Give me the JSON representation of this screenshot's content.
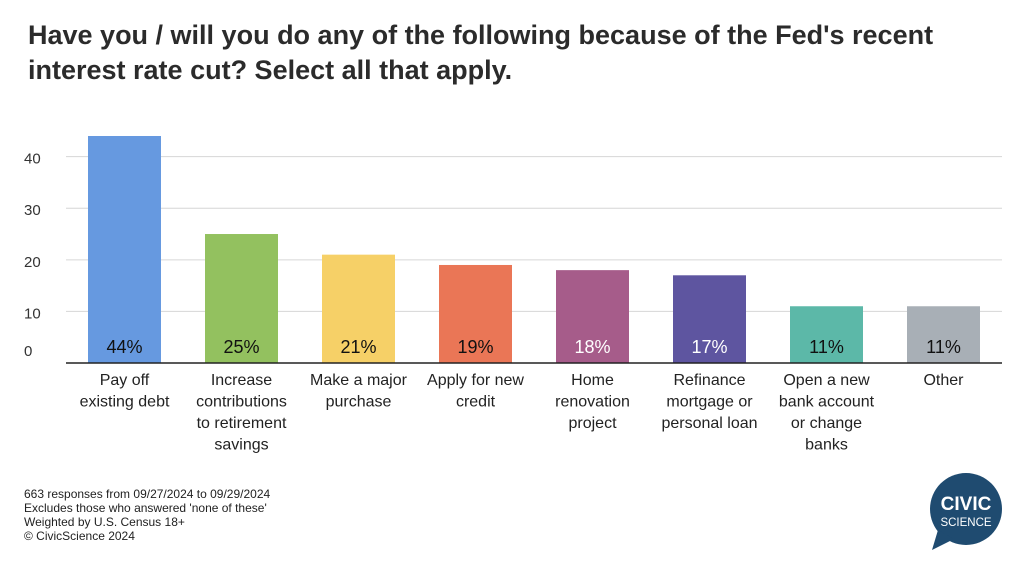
{
  "title": "Have you / will you do any of the following because of the Fed's recent interest rate cut? Select all that apply.",
  "footnotes": [
    "663 responses from 09/27/2024 to 09/29/2024",
    "Excludes those who answered 'none of these'",
    "Weighted by U.S. Census 18+",
    "© CivicScience 2024"
  ],
  "logo": {
    "line1": "CIVIC",
    "line2": "SCIENCE",
    "color": "#1f4b70"
  },
  "chart_data": {
    "type": "bar",
    "categories": [
      [
        "Pay off",
        "existing debt"
      ],
      [
        "Increase",
        "contributions",
        "to retirement",
        "savings"
      ],
      [
        "Make a major",
        "purchase"
      ],
      [
        "Apply for new",
        "credit"
      ],
      [
        "Home",
        "renovation",
        "project"
      ],
      [
        "Refinance",
        "mortgage or",
        "personal loan"
      ],
      [
        "Open a new",
        "bank account",
        "or change",
        "banks"
      ],
      [
        "Other"
      ]
    ],
    "values": [
      44,
      25,
      21,
      19,
      18,
      17,
      11,
      11
    ],
    "data_labels": [
      "44%",
      "25%",
      "21%",
      "19%",
      "18%",
      "17%",
      "11%",
      "11%"
    ],
    "colors": [
      "#6699e0",
      "#93c15f",
      "#f6d067",
      "#ea7656",
      "#a65c8a",
      "#5e55a0",
      "#5cb8a8",
      "#a8afb6"
    ],
    "label_colors": [
      "#111111",
      "#111111",
      "#111111",
      "#111111",
      "#ffffff",
      "#ffffff",
      "#111111",
      "#111111"
    ],
    "y_ticks": [
      0,
      10,
      20,
      30,
      40
    ],
    "ylim": [
      0,
      44
    ],
    "grid": true
  }
}
